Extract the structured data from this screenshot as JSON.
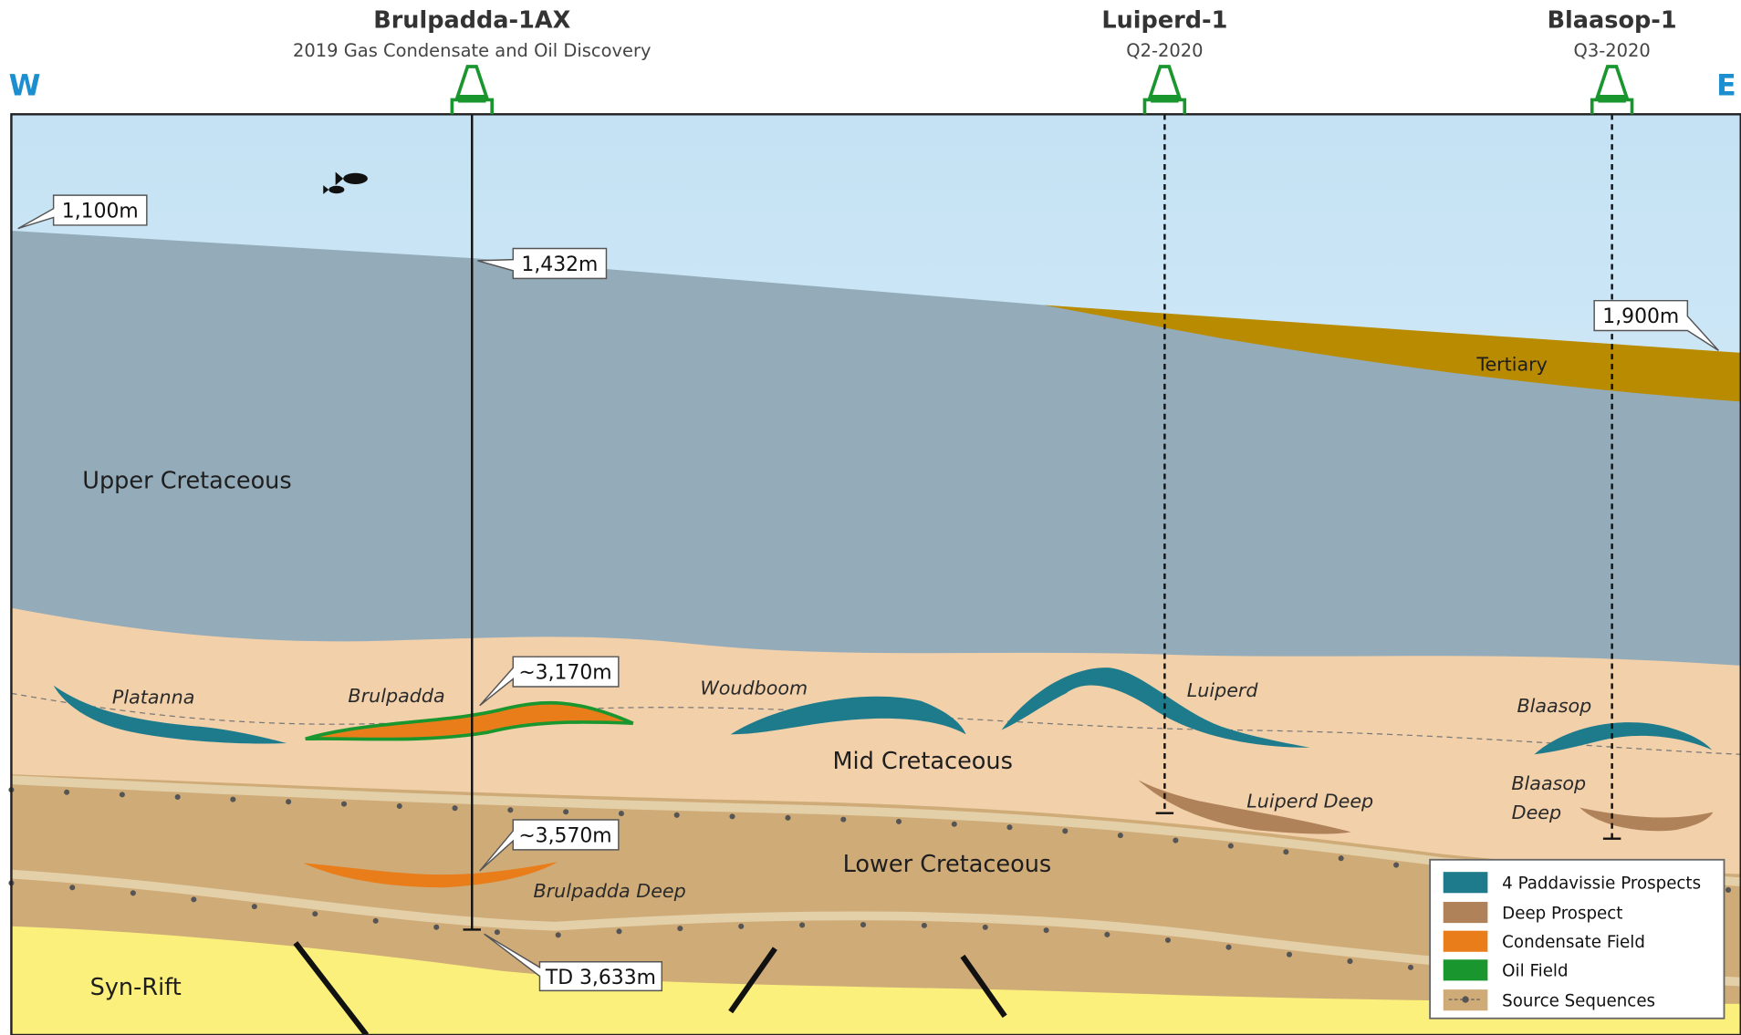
{
  "directions": {
    "west": "W",
    "east": "E"
  },
  "wells": [
    {
      "name": "Brulpadda-1AX",
      "subtitle": "2019 Gas Condensate and Oil Discovery"
    },
    {
      "name": "Luiperd-1",
      "subtitle": "Q2-2020"
    },
    {
      "name": "Blaasop-1",
      "subtitle": "Q3-2020"
    }
  ],
  "depth_callouts": [
    "1,100m",
    "1,432m",
    "1,900m",
    "~3,170m",
    "~3,570m",
    "TD 3,633m"
  ],
  "layers": [
    "Tertiary",
    "Upper Cretaceous",
    "Mid Cretaceous",
    "Lower Cretaceous",
    "Syn-Rift"
  ],
  "prospects": [
    "Platanna",
    "Brulpadda",
    "Woudboom",
    "Luiperd",
    "Blaasop",
    "Luiperd Deep",
    "Brulpadda Deep"
  ],
  "blaasop_deep_label": [
    "Blaasop",
    "Deep"
  ],
  "legend": [
    "4 Paddavissie Prospects",
    "Deep Prospect",
    "Condensate Field",
    "Oil Field",
    "Source Sequences"
  ]
}
